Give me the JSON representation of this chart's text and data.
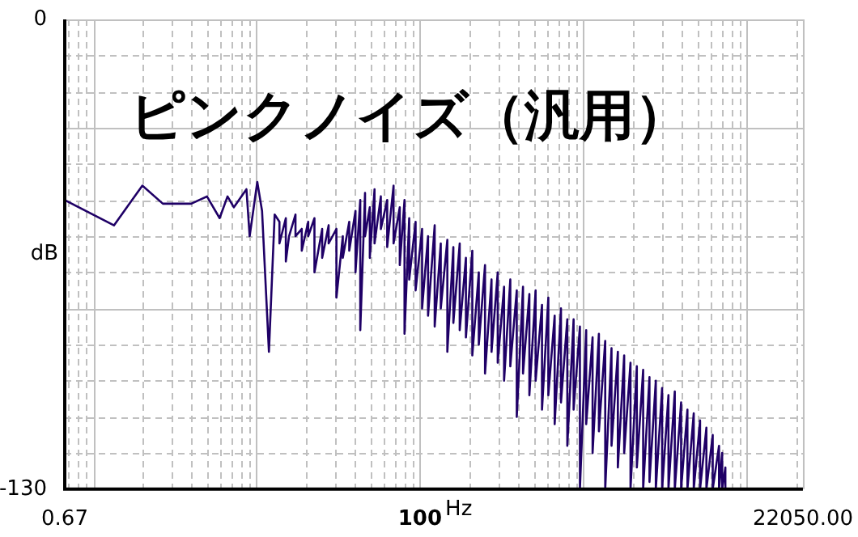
{
  "chart_data": {
    "type": "line",
    "title": "ピンクノイズ（汎用）",
    "xlabel": "Hz",
    "ylabel": "dB",
    "log": "x",
    "grid": true,
    "legend": false,
    "marker": "none",
    "line_style": "solid",
    "xlim": [
      0.67,
      22050
    ],
    "xticks": [
      0.67,
      100,
      {
        "value": 22050,
        "label": "22050.00"
      }
    ],
    "ylim": [
      -130,
      0
    ],
    "yticks": [
      -130,
      0
    ],
    "series": [
      {
        "color": "#1f0066",
        "x": [
          0.67,
          1.34,
          2.0,
          2.67,
          3.98,
          4.97,
          5.94,
          6.64,
          7.26,
          8.67,
          9.07,
          10.1,
          10.8,
          11.9,
          12.9,
          13.8,
          13.8,
          15.1,
          15.1,
          15.8,
          17.3,
          17.3,
          18.9,
          18.9,
          20.7,
          20.7,
          22.6,
          22.6,
          25.2,
          25.2,
          27.6,
          27.6,
          30.8,
          30.8,
          33.7,
          33.7,
          36.9,
          36.9,
          40.3,
          40.3,
          43.1,
          43.1,
          46.1,
          46.1,
          49.3,
          49.3,
          52.7,
          52.7,
          57.6,
          57.6,
          63,
          63,
          68.9,
          68.9,
          75.2,
          75.2,
          80.4,
          80.4,
          85.9,
          85.9,
          94,
          94,
          103,
          103,
          112,
          112,
          123,
          123,
          134,
          134,
          147,
          147,
          160,
          160,
          175,
          175,
          191,
          191,
          209,
          209,
          229,
          229,
          250,
          250,
          274,
          274,
          299,
          299,
          327,
          327,
          357,
          357,
          391,
          391,
          427,
          427,
          467,
          467,
          510,
          510,
          558,
          558,
          610,
          610,
          667,
          667,
          729,
          729,
          797,
          797,
          871,
          871,
          952,
          952,
          1040,
          1040,
          1138,
          1138,
          1244,
          1244,
          1360,
          1360,
          1486,
          1486,
          1625,
          1625,
          1776,
          1776,
          1942,
          1942,
          2123,
          2123,
          2321,
          2321,
          2537,
          2537,
          2774,
          2774,
          3032,
          3032,
          3315,
          3315,
          3624,
          3624,
          3962,
          3962,
          4331,
          4331,
          4734,
          4734,
          5175,
          5175,
          5658,
          5658,
          6185,
          6185,
          6761,
          6761,
          7066,
          7066,
          7392,
          7392,
          7727
        ],
        "values": [
          -50,
          -57,
          -46,
          -51,
          -51,
          -49,
          -55,
          -49,
          -52,
          -47,
          -60,
          -45,
          -53,
          -92,
          -54,
          -56,
          -62,
          -55,
          -67,
          -60,
          -54,
          -60,
          -58,
          -64,
          -56,
          -60,
          -55,
          -70,
          -58,
          -66,
          -57,
          -62,
          -58,
          -77,
          -60,
          -66,
          -56,
          -64,
          -53,
          -70,
          -50,
          -86,
          -48,
          -60,
          -52,
          -66,
          -47,
          -62,
          -49,
          -58,
          -50,
          -63,
          -46,
          -62,
          -52,
          -68,
          -50,
          -87,
          -55,
          -72,
          -56,
          -75,
          -58,
          -80,
          -60,
          -82,
          -57,
          -85,
          -62,
          -80,
          -61,
          -92,
          -63,
          -84,
          -62,
          -86,
          -66,
          -88,
          -64,
          -93,
          -70,
          -90,
          -68,
          -98,
          -72,
          -92,
          -70,
          -95,
          -74,
          -100,
          -72,
          -96,
          -75,
          -110,
          -74,
          -98,
          -76,
          -104,
          -75,
          -100,
          -79,
          -108,
          -77,
          -104,
          -82,
          -112,
          -80,
          -106,
          -83,
          -118,
          -83,
          -108,
          -85,
          -130,
          -86,
          -112,
          -88,
          -120,
          -87,
          -114,
          -89,
          -130,
          -91,
          -118,
          -92,
          -124,
          -93,
          -120,
          -95,
          -130,
          -96,
          -124,
          -97,
          -130,
          -99,
          -128,
          -100,
          -130,
          -102,
          -130,
          -104,
          -130,
          -103,
          -130,
          -106,
          -130,
          -108,
          -130,
          -109,
          -130,
          -111,
          -130,
          -113,
          -130,
          -115,
          -130,
          -118,
          -130,
          -120,
          -130,
          -124,
          -130,
          -130
        ]
      }
    ]
  }
}
